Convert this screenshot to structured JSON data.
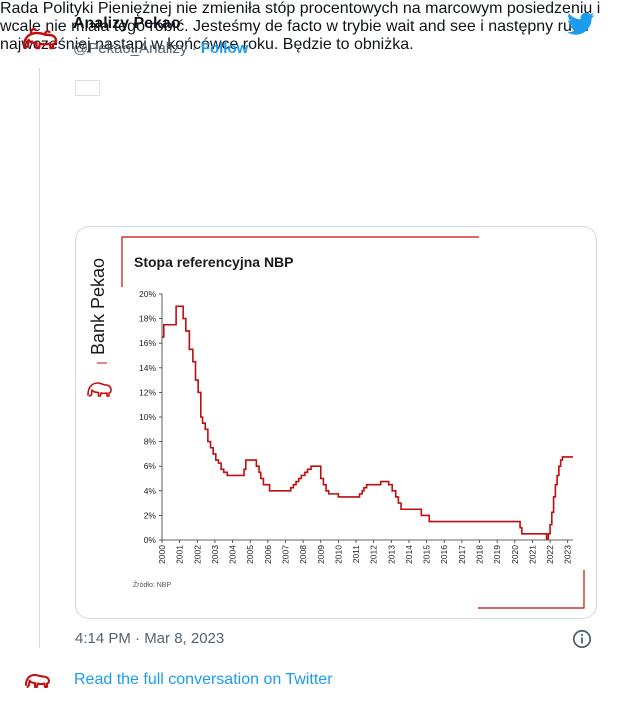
{
  "tweet": {
    "author_name": "Analizy Pekao",
    "handle": "@Pekao_Analizy",
    "separator": "·",
    "follow_label": "Follow",
    "text": "Rada Polityki Pieniężnej nie zmieniła stóp procentowych na marcowym posiedzeniu i wcale nie miała tego robić. Jesteśmy de facto w trybie wait and see i następny ruch najwcześniej nastąpi w końcówce roku. Będzie to obniżka.",
    "timestamp": "4:14 PM · Mar 8, 2023",
    "read_more_label": "Read the full conversation on Twitter",
    "icons": [
      "pekao-bison-logo-icon",
      "twitter-bird-icon",
      "poland-flag-icon",
      "info-icon"
    ],
    "colors": {
      "link": "#1d9bf0",
      "secondary_text": "#536471",
      "border": "#cfd9de",
      "pekao_red": "#c00d0d"
    }
  },
  "chart_brand": "Bank Pekao",
  "chart_data": {
    "type": "line",
    "title": "Stopa referencyjna NBP",
    "source": "Źródło: NBP",
    "xlabel": "",
    "ylabel": "",
    "xlim": [
      2000,
      2023.3
    ],
    "ylim": [
      0,
      20
    ],
    "grid": false,
    "legend": "none",
    "x_ticks": [
      "2000",
      "2001",
      "2002",
      "2003",
      "2004",
      "2005",
      "2006",
      "2007",
      "2008",
      "2009",
      "2010",
      "2011",
      "2012",
      "2013",
      "2014",
      "2015",
      "2016",
      "2017",
      "2018",
      "2019",
      "2020",
      "2021",
      "2022",
      "2023"
    ],
    "y_ticks": [
      "0%",
      "2%",
      "4%",
      "6%",
      "8%",
      "10%",
      "12%",
      "14%",
      "16%",
      "18%",
      "20%"
    ],
    "series": [
      {
        "color": "#c00d0d",
        "x": [
          2000.0,
          2000.1,
          2000.3,
          2000.45,
          2000.8,
          2001.2,
          2001.35,
          2001.55,
          2001.75,
          2001.9,
          2002.05,
          2002.2,
          2002.3,
          2002.45,
          2002.6,
          2002.75,
          2002.9,
          2003.05,
          2003.2,
          2003.35,
          2003.5,
          2003.7,
          2004.55,
          2004.65,
          2004.75,
          2005.25,
          2005.35,
          2005.5,
          2005.6,
          2005.75,
          2006.1,
          2007.3,
          2007.45,
          2007.6,
          2007.75,
          2007.9,
          2008.1,
          2008.25,
          2008.45,
          2009.0,
          2009.15,
          2009.3,
          2009.45,
          2010.0,
          2011.2,
          2011.35,
          2011.45,
          2011.6,
          2012.4,
          2012.85,
          2013.05,
          2013.25,
          2013.4,
          2013.55,
          2014.7,
          2015.15,
          2020.15,
          2020.3,
          2020.4,
          2021.8,
          2021.9,
          2022.0,
          2022.1,
          2022.2,
          2022.3,
          2022.4,
          2022.5,
          2022.6,
          2022.7,
          2023.3
        ],
        "values": [
          16.5,
          17.5,
          17.5,
          17.5,
          19.0,
          18.0,
          17.0,
          15.5,
          14.5,
          13.0,
          12.0,
          10.0,
          9.5,
          9.0,
          8.0,
          7.5,
          7.0,
          6.5,
          6.25,
          5.75,
          5.5,
          5.25,
          5.25,
          5.75,
          6.5,
          6.5,
          6.0,
          5.5,
          5.0,
          4.5,
          4.0,
          4.25,
          4.5,
          4.75,
          5.0,
          5.25,
          5.5,
          5.75,
          6.0,
          5.0,
          4.5,
          4.0,
          3.75,
          3.5,
          3.75,
          4.0,
          4.25,
          4.5,
          4.75,
          4.5,
          4.0,
          3.5,
          3.0,
          2.5,
          2.0,
          1.5,
          1.5,
          1.0,
          0.5,
          0.1,
          0.5,
          1.25,
          2.25,
          3.5,
          4.5,
          5.25,
          6.0,
          6.5,
          6.75,
          6.75
        ]
      }
    ]
  }
}
